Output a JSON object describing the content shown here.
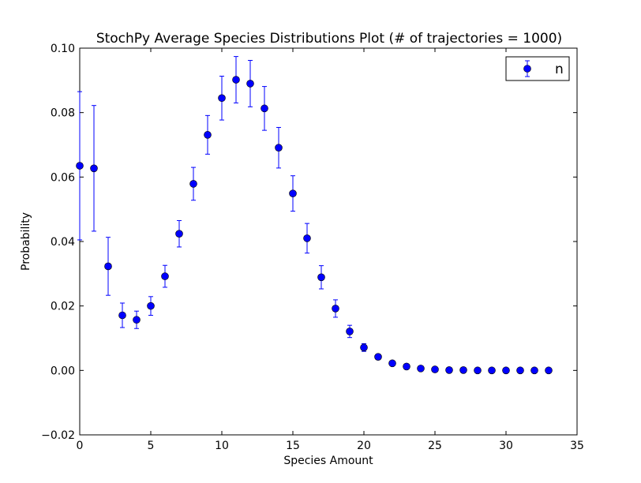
{
  "chart_data": {
    "type": "scatter",
    "title": "StochPy Average Species Distributions Plot (# of trajectories = 1000)",
    "xlabel": "Species Amount",
    "ylabel": "Probability",
    "xlim": [
      0,
      35
    ],
    "ylim": [
      -0.02,
      0.1
    ],
    "xticks": [
      0,
      5,
      10,
      15,
      20,
      25,
      30,
      35
    ],
    "xtick_labels": [
      "0",
      "5",
      "10",
      "15",
      "20",
      "25",
      "30",
      "35"
    ],
    "yticks": [
      -0.02,
      0.0,
      0.02,
      0.04,
      0.06,
      0.08,
      0.1
    ],
    "ytick_labels": [
      "−0.02",
      "0.00",
      "0.02",
      "0.04",
      "0.06",
      "0.08",
      "0.10"
    ],
    "grid": false,
    "legend_position": "top-right",
    "series": [
      {
        "name": "n",
        "color": "#0000ff",
        "x": [
          0,
          1,
          2,
          3,
          4,
          5,
          6,
          7,
          8,
          9,
          10,
          11,
          12,
          13,
          14,
          15,
          16,
          17,
          18,
          19,
          20,
          21,
          22,
          23,
          24,
          25,
          26,
          27,
          28,
          29,
          30,
          31,
          32,
          33
        ],
        "y": [
          0.0635,
          0.0627,
          0.0323,
          0.0171,
          0.0157,
          0.02,
          0.0292,
          0.0424,
          0.0579,
          0.0731,
          0.0845,
          0.0902,
          0.089,
          0.0813,
          0.0691,
          0.0549,
          0.041,
          0.0289,
          0.0192,
          0.0121,
          0.0071,
          0.0042,
          0.0022,
          0.0012,
          0.0006,
          0.0003,
          0.0001,
          0.0001,
          0.0,
          0.0,
          0.0,
          0.0,
          0.0,
          0.0
        ],
        "yerr": [
          0.023,
          0.0195,
          0.009,
          0.0038,
          0.0027,
          0.0029,
          0.0034,
          0.0041,
          0.0051,
          0.006,
          0.0068,
          0.0072,
          0.0072,
          0.0068,
          0.0063,
          0.0055,
          0.0046,
          0.0036,
          0.0027,
          0.0019,
          0.0012,
          0.0008,
          0.0005,
          0.0003,
          0.0002,
          0.0001,
          0,
          0,
          0,
          0,
          0,
          0,
          0,
          0
        ]
      }
    ]
  }
}
